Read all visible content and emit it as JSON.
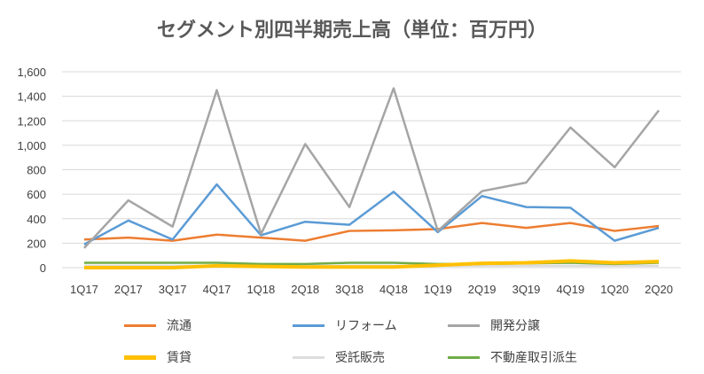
{
  "chart_data": {
    "type": "line",
    "title": "セグメント別四半期売上高（単位：百万円）",
    "xlabel": "",
    "ylabel": "",
    "ylim": [
      0,
      1600
    ],
    "yticks": [
      "0",
      "200",
      "400",
      "600",
      "800",
      "1,000",
      "1,200",
      "1,400",
      "1,600"
    ],
    "ytick_values": [
      0,
      200,
      400,
      600,
      800,
      1000,
      1200,
      1400,
      1600
    ],
    "grid": true,
    "legend_position": "bottom",
    "categories": [
      "1Q17",
      "2Q17",
      "3Q17",
      "4Q17",
      "1Q18",
      "2Q18",
      "3Q18",
      "4Q18",
      "1Q19",
      "2Q19",
      "3Q19",
      "4Q19",
      "1Q20",
      "2Q20"
    ],
    "series": [
      {
        "name": "流通",
        "color": "#ED7D31",
        "width": 2.5,
        "values": [
          230,
          245,
          220,
          270,
          245,
          220,
          300,
          305,
          315,
          365,
          325,
          365,
          300,
          340
        ]
      },
      {
        "name": "リフォーム",
        "color": "#5B9BD5",
        "width": 2.5,
        "values": [
          190,
          385,
          230,
          680,
          265,
          375,
          350,
          620,
          290,
          585,
          495,
          490,
          220,
          325
        ]
      },
      {
        "name": "開発分譲",
        "color": "#A5A5A5",
        "width": 2.5,
        "values": [
          160,
          550,
          335,
          1450,
          275,
          1010,
          495,
          1465,
          300,
          625,
          695,
          1145,
          820,
          1285
        ]
      },
      {
        "name": "賃貸",
        "color": "#FFC000",
        "width": 4,
        "values": [
          0,
          0,
          0,
          15,
          10,
          5,
          5,
          5,
          20,
          35,
          40,
          55,
          40,
          50
        ]
      },
      {
        "name": "受託販売",
        "color": "#DDDDDD",
        "width": 2.5,
        "values": [
          15,
          15,
          15,
          15,
          15,
          15,
          15,
          15,
          15,
          15,
          15,
          15,
          15,
          15
        ]
      },
      {
        "name": "不動産取引派生",
        "color": "#70AD47",
        "width": 2.5,
        "values": [
          40,
          40,
          40,
          40,
          30,
          30,
          40,
          40,
          30,
          30,
          35,
          40,
          30,
          40
        ]
      }
    ]
  }
}
